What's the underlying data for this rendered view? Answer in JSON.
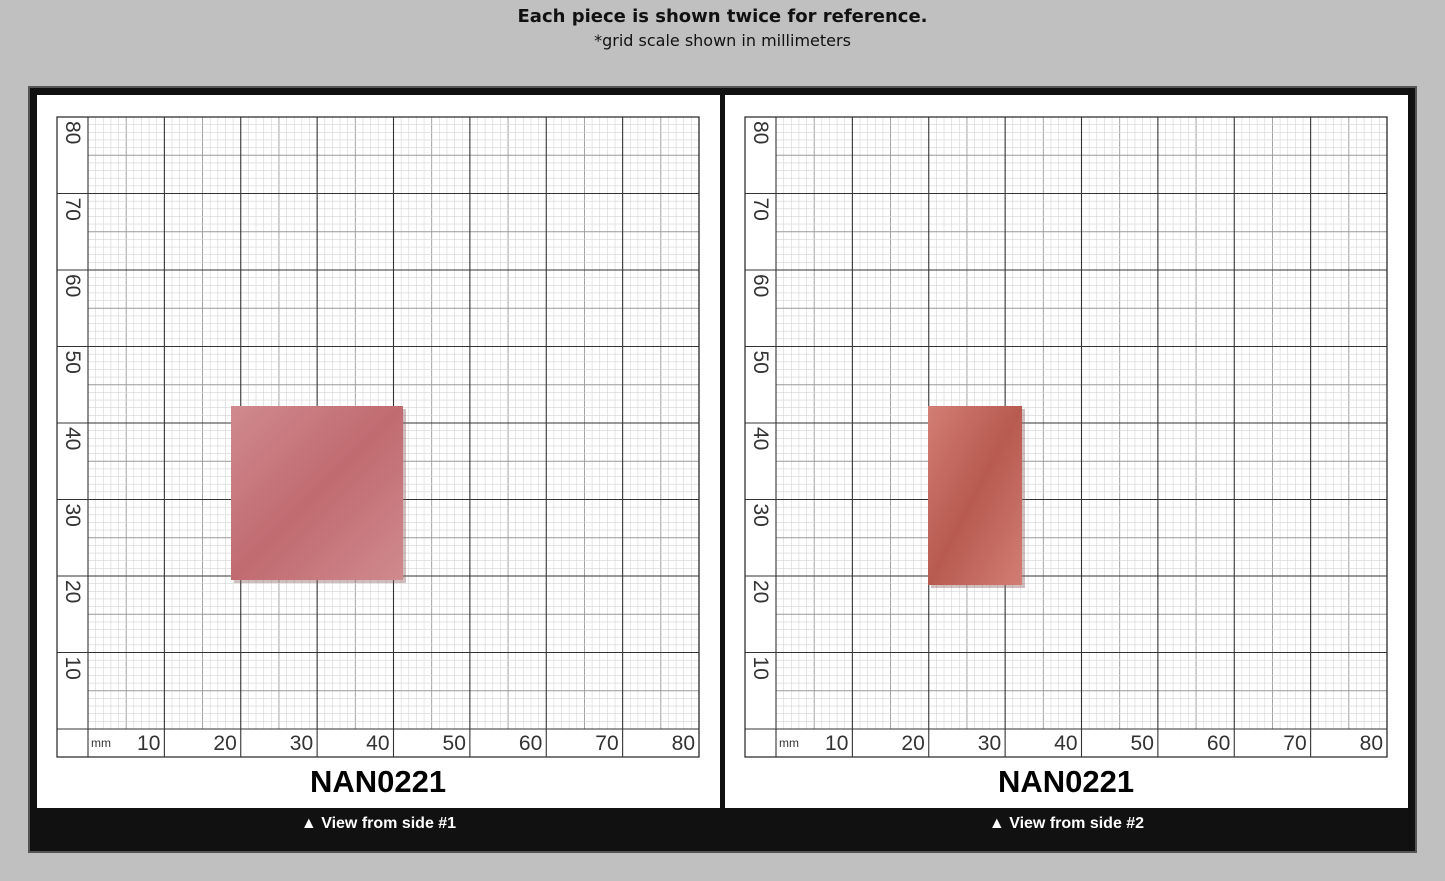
{
  "header": {
    "title": "Each piece is shown twice for reference.",
    "subtitle": "*grid scale shown in millimeters"
  },
  "panels": [
    {
      "unit": "mm",
      "x_labels": [
        "10",
        "20",
        "30",
        "40",
        "50",
        "60",
        "70",
        "80"
      ],
      "y_labels": [
        "10",
        "20",
        "30",
        "40",
        "50",
        "60",
        "70",
        "80"
      ],
      "piece_name": "NAN0221",
      "caption": "▲ View from side #1"
    },
    {
      "unit": "mm",
      "x_labels": [
        "10",
        "20",
        "30",
        "40",
        "50",
        "60",
        "70",
        "80"
      ],
      "y_labels": [
        "10",
        "20",
        "30",
        "40",
        "50",
        "60",
        "70",
        "80"
      ],
      "piece_name": "NAN0221",
      "caption": "▲ View from side #2"
    }
  ]
}
